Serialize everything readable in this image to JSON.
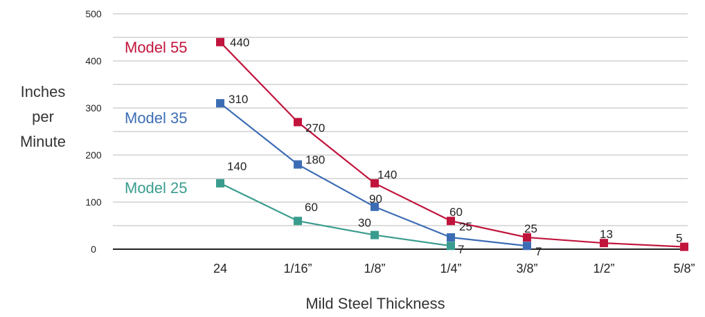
{
  "chart_data": {
    "type": "line",
    "categories": [
      "24",
      "1/16”",
      "1/8”",
      "1/4”",
      "3/8”",
      "1/2”",
      "5/8”"
    ],
    "series": [
      {
        "name": "Model 55",
        "color": "#c0143c",
        "values": [
          440,
          270,
          140,
          60,
          25,
          13,
          5
        ]
      },
      {
        "name": "Model 35",
        "color": "#3c6db4",
        "values": [
          310,
          180,
          90,
          25,
          7,
          null,
          null
        ]
      },
      {
        "name": "Model 25",
        "color": "#3a9c8e",
        "values": [
          140,
          60,
          30,
          7,
          null,
          null,
          null
        ]
      }
    ],
    "yticks": [
      0,
      100,
      200,
      300,
      400,
      500
    ],
    "ylim": [
      0,
      500
    ],
    "xlabel": "Mild Steel Thickness",
    "ylabel_lines": [
      "Inches",
      "per",
      "Minute"
    ],
    "grid": true,
    "legend": "inline labels at left"
  }
}
